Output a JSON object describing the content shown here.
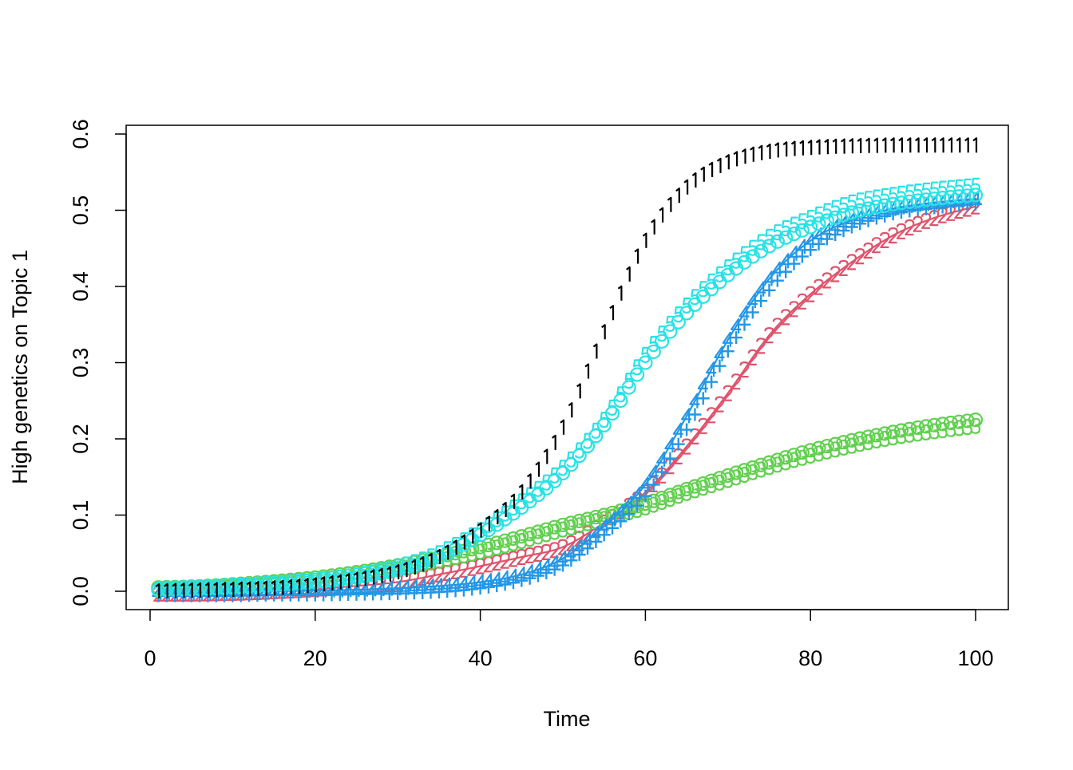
{
  "chart_data": {
    "type": "line",
    "title": "",
    "xlabel": "Time",
    "ylabel": "High genetics on Topic 1",
    "xlim": [
      0,
      100
    ],
    "ylim": [
      -0.01,
      0.6
    ],
    "xticks": [
      "0",
      "20",
      "40",
      "60",
      "80",
      "100"
    ],
    "yticks": [
      "0.0",
      "0.1",
      "0.2",
      "0.3",
      "0.4",
      "0.5",
      "0.6"
    ],
    "grid": false,
    "legend": "none",
    "x": [
      1,
      5,
      10,
      15,
      20,
      25,
      30,
      35,
      40,
      45,
      50,
      55,
      60,
      65,
      70,
      75,
      80,
      85,
      90,
      95,
      100
    ],
    "series": [
      {
        "pch": "2",
        "color": "#DF536B",
        "line": true,
        "values": [
          -0.003,
          -0.003,
          -0.002,
          0,
          0.003,
          0.007,
          0.012,
          0.022,
          0.033,
          0.045,
          0.058,
          0.09,
          0.13,
          0.19,
          0.26,
          0.336,
          0.39,
          0.432,
          0.467,
          0.49,
          0.505
        ]
      },
      {
        "pch": "circle",
        "color": "#61D04F",
        "line": false,
        "values": [
          0.005,
          0.006,
          0.009,
          0.013,
          0.018,
          0.025,
          0.034,
          0.045,
          0.058,
          0.072,
          0.087,
          0.1,
          0.115,
          0.134,
          0.152,
          0.169,
          0.185,
          0.198,
          0.209,
          0.218,
          0.225
        ]
      },
      {
        "pch": "3",
        "color": "#61D04F",
        "line": false,
        "values": [
          0.002,
          0.003,
          0.006,
          0.009,
          0.014,
          0.021,
          0.029,
          0.04,
          0.052,
          0.066,
          0.081,
          0.095,
          0.11,
          0.129,
          0.146,
          0.163,
          0.178,
          0.191,
          0.202,
          0.21,
          0.217
        ]
      },
      {
        "pch": "plus",
        "color": "#2297E6",
        "line": false,
        "values": [
          -0.006,
          -0.006,
          -0.006,
          -0.005,
          -0.005,
          -0.004,
          -0.003,
          -0.001,
          0.004,
          0.014,
          0.034,
          0.074,
          0.125,
          0.212,
          0.315,
          0.395,
          0.448,
          0.478,
          0.495,
          0.503,
          0.508
        ]
      },
      {
        "pch": "4",
        "color": "#2297E6",
        "line": true,
        "values": [
          -0.002,
          -0.002,
          -0.001,
          0,
          0.001,
          0.002,
          0.004,
          0.007,
          0.012,
          0.022,
          0.043,
          0.085,
          0.14,
          0.23,
          0.33,
          0.41,
          0.46,
          0.487,
          0.502,
          0.51,
          0.515
        ]
      },
      {
        "pch": "circle",
        "color": "#28E2E5",
        "line": false,
        "values": [
          0.002,
          0.003,
          0.005,
          0.008,
          0.012,
          0.018,
          0.028,
          0.045,
          0.074,
          0.11,
          0.155,
          0.218,
          0.3,
          0.365,
          0.415,
          0.453,
          0.478,
          0.497,
          0.508,
          0.515,
          0.52
        ]
      },
      {
        "pch": "5",
        "color": "#28E2E5",
        "line": false,
        "values": [
          0.003,
          0.004,
          0.007,
          0.01,
          0.014,
          0.021,
          0.032,
          0.05,
          0.08,
          0.118,
          0.162,
          0.225,
          0.31,
          0.375,
          0.425,
          0.465,
          0.49,
          0.51,
          0.52,
          0.527,
          0.532
        ]
      },
      {
        "pch": "1",
        "color": "#000000",
        "line": false,
        "values": [
          0.0,
          0.001,
          0.002,
          0.004,
          0.008,
          0.015,
          0.025,
          0.045,
          0.08,
          0.13,
          0.215,
          0.34,
          0.46,
          0.53,
          0.563,
          0.577,
          0.582,
          0.584,
          0.585,
          0.585,
          0.585
        ]
      }
    ]
  }
}
